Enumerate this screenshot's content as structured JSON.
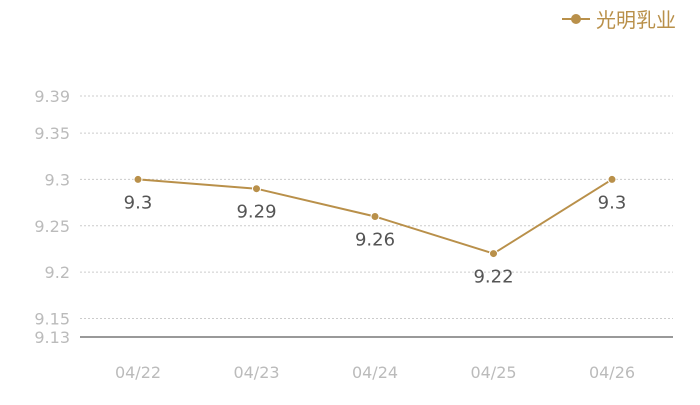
{
  "colors": {
    "series": "#b9904a",
    "axis_label": "#bbbbbb",
    "data_label": "#555555",
    "grid": "#cccccc",
    "baseline": "#333333"
  },
  "chart_data": {
    "type": "line",
    "title": "",
    "xlabel": "",
    "ylabel": "",
    "categories": [
      "04/22",
      "04/23",
      "04/24",
      "04/25",
      "04/26"
    ],
    "series": [
      {
        "name": "光明乳业",
        "values": [
          9.3,
          9.29,
          9.26,
          9.22,
          9.3
        ],
        "labels": [
          "9.3",
          "9.29",
          "9.26",
          "9.22",
          "9.3"
        ]
      }
    ],
    "ylim": [
      9.13,
      9.39
    ],
    "yticks": [
      9.13,
      9.15,
      9.2,
      9.25,
      9.3,
      9.35,
      9.39
    ],
    "ytick_labels": [
      "9.13",
      "9.15",
      "9.2",
      "9.25",
      "9.3",
      "9.35",
      "9.39"
    ],
    "grid": true,
    "legend_position": "top-right"
  }
}
